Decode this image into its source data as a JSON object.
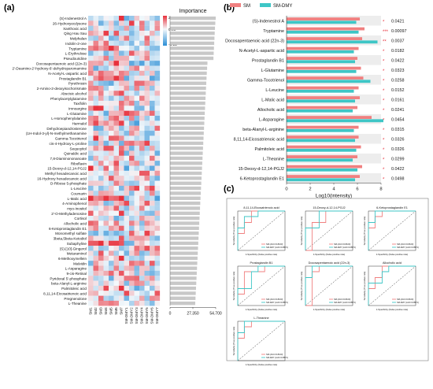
{
  "panel_labels": {
    "a": "(a)",
    "b": "(b)",
    "c": "(c)"
  },
  "colors": {
    "hm_low": "#2b8fd6",
    "hm_mid": "#f4f8fb",
    "hm_high": "#e8303b",
    "sm": "#f08080",
    "sm_dmy": "#3ec6c6",
    "importance_bar": "#c8c8c8"
  },
  "chart_data": [
    {
      "type": "heatmap",
      "panel": "a",
      "rows": [
        "(S)-Indenestrol A",
        "26-Hydroxyecdysone",
        "Xanthoxic acid",
        "Qing Hau Sau",
        "Melphalan",
        "Indolin-2-one",
        "Tryptamine",
        "L-Erythrulose",
        "Pseudouridine",
        "Docosapentaenoic acid (22n-3)",
        "2'-Deamino-2'-hydroxy-6'-dehydroparomamine",
        "N-Acetyl-L-aspartic acid",
        "Prostaglandin B1",
        "Pyrethrosin",
        "2-Amino-2-deoxyisochorismate",
        "Abscisic alcohol",
        "Phenylacetylglutamine",
        "Taxifolin",
        "Imnoargine",
        "L-Glutamine",
        "L-Homophenylalanine",
        "Harmalol",
        "Dehydroepiandrosterone",
        "(1H-Indol-3-yl)-N-methylmethanamine",
        "Gamma-Tocotrienol",
        "cis-4-Hydroxy-L-proline",
        "Sequoyitol",
        "Quinaldic acid",
        "7,8-Diaminononanoate",
        "Riboflavin",
        "15-Deoxy-d-12,14-PGJ2",
        "Methyl hexadecanoic acid",
        "16-Hydroxy hexadecanoic acid",
        "D-Ribose 5-phosphate",
        "L-Leucine",
        "Coumarin",
        "L-Malic acid",
        "4-Aminophenol",
        "myo-Inositol",
        "2'-O-Methyladenosine",
        "Cortisol",
        "Allocholic acid",
        "6-Ketoprostaglandin E1",
        "Monomethyl sulfate",
        "3beta,5beta-Ketodiol",
        "Subaphyline",
        "(S)-[10]-Gingerol",
        "Metaraminol",
        "6-Methoxymellein",
        "Malvidin",
        "L-Asparagine",
        "9-cis-Retinal",
        "Pyridoxal 5'-phosphate",
        "beta-Alanyl-L-arginine",
        "Palmitoleic acid",
        "8,11,14-Eicosatrienoic acid",
        "Pregnenolone",
        "L-Theanine"
      ],
      "columns": [
        "SM1",
        "SM2",
        "SM3",
        "SM4",
        "SM5",
        "SM6",
        "SM7",
        "SM-DMY1",
        "SM-DMY2",
        "SM-DMY3",
        "SM-DMY4",
        "SM-DMY5",
        "SM-DMY6",
        "SM-DMY7"
      ],
      "scale": {
        "min": -3.22,
        "mid": 0.0,
        "max": 2.51
      },
      "scale_labels": [
        "2.51",
        "0.00",
        "-3.22"
      ]
    },
    {
      "type": "bar",
      "panel": "a",
      "orientation": "horizontal",
      "title": "Importance",
      "xlim": [
        0,
        54.7
      ],
      "ticks": [
        "0",
        "27.350",
        "54.700"
      ],
      "values": [
        54.7,
        54.2,
        53.8,
        53.5,
        53.2,
        52.9,
        52.6,
        52.3,
        52.0,
        44.8,
        44.4,
        44.0,
        43.7,
        43.4,
        43.1,
        42.8,
        42.5,
        42.2,
        41.9,
        41.6,
        41.3,
        41.0,
        40.7,
        40.4,
        40.1,
        39.8,
        39.5,
        39.2,
        38.9,
        38.6,
        38.3,
        38.0,
        37.7,
        37.4,
        37.1,
        36.8,
        36.5,
        36.2,
        35.9,
        35.6,
        35.3,
        35.0,
        34.7,
        34.4,
        34.1,
        33.8,
        33.5,
        33.2,
        32.9,
        32.6,
        32.3,
        32.0,
        31.7,
        31.4,
        31.1,
        30.8,
        30.5,
        30.2
      ]
    },
    {
      "type": "bar",
      "panel": "b",
      "orientation": "horizontal",
      "xlabel": "Log10(intensity)",
      "xlim": [
        0,
        8
      ],
      "ticks": [
        "0",
        "2",
        "4",
        "6",
        "8"
      ],
      "categories": [
        "(S)-Indenestrol A",
        "Tryptamine",
        "Docosapentaenoic acid (22n-3)",
        "N-Acetyl-L-aspartic acid",
        "Prostaglandin B1",
        "L-Glutamine",
        "Gamma-Tocotrienol",
        "L-Leucine",
        "L-Malic acid",
        "Allocholic acid",
        "L-Asparagine",
        "beta-Alanyl-L-arginine",
        "8,11,14-Eicosatrienoic acid",
        "Palmitoleic acid",
        "L-Theanine",
        "15-Deoxy-d-12,14-PGJ2",
        "6-Ketoprostaglandin E1"
      ],
      "series": [
        {
          "name": "SM",
          "values": [
            6.2,
            6.6,
            6.4,
            6.1,
            6.0,
            6.3,
            6.5,
            6.1,
            6.2,
            6.0,
            7.2,
            6.1,
            6.1,
            6.3,
            6.0,
            6.4,
            6.2
          ]
        },
        {
          "name": "SM-DMY",
          "values": [
            5.9,
            6.1,
            7.7,
            5.7,
            5.8,
            5.9,
            7.1,
            5.7,
            5.8,
            5.6,
            8.2,
            5.7,
            5.8,
            5.9,
            5.6,
            6.0,
            5.8
          ]
        }
      ],
      "stars": [
        "*",
        "***",
        "**",
        "*",
        "*",
        "*",
        "*",
        "*",
        "*",
        "*",
        "*",
        "*",
        "*",
        "*",
        "*",
        "*",
        "*"
      ],
      "pvalues": [
        "0.0421",
        "0.00097",
        "0.0037",
        "0.0182",
        "0.0422",
        "0.0323",
        "0.0258",
        "0.0152",
        "0.0161",
        "0.0241",
        "0.0454",
        "0.0315",
        "0.0326",
        "0.0326",
        "0.0299",
        "0.0422",
        "0.0498"
      ],
      "legend": "top-right"
    },
    {
      "type": "line",
      "panel": "c",
      "titles": [
        "8,11,14-Eicosatrienoic acid",
        "15-Deoxy-d-12,14-PGJ2",
        "6-Ketoprostaglandin E1",
        "Prostaglandin B1",
        "Docosapentaenoic acid (22n-3)",
        "Allocholic acid",
        "L-Theanine"
      ],
      "xlabel": "1-Specificity (False positive rate)",
      "ylabel": "Sensitivity (True positive rate)",
      "series_names": [
        "SM (AUC=0.8163)",
        "SM-DMY (AUC=0.8571)"
      ],
      "curves": [
        {
          "sm": [
            [
              0,
              0
            ],
            [
              0,
              0.43
            ],
            [
              0.14,
              0.43
            ],
            [
              0.14,
              0.71
            ],
            [
              0.29,
              0.71
            ],
            [
              0.29,
              1
            ],
            [
              1,
              1
            ]
          ],
          "dmy": [
            [
              0,
              0
            ],
            [
              0,
              0.57
            ],
            [
              0.14,
              0.57
            ],
            [
              0.14,
              0.86
            ],
            [
              0.43,
              0.86
            ],
            [
              0.43,
              1
            ],
            [
              1,
              1
            ]
          ]
        },
        {
          "sm": [
            [
              0,
              0
            ],
            [
              0.14,
              0
            ],
            [
              0.14,
              0.71
            ],
            [
              0.43,
              0.71
            ],
            [
              0.43,
              1
            ],
            [
              1,
              1
            ]
          ],
          "dmy": [
            [
              0,
              0
            ],
            [
              0,
              0.57
            ],
            [
              0.29,
              0.57
            ],
            [
              0.29,
              1
            ],
            [
              1,
              1
            ]
          ]
        },
        {
          "sm": [
            [
              0,
              0
            ],
            [
              0,
              0.57
            ],
            [
              0.14,
              0.57
            ],
            [
              0.14,
              0.86
            ],
            [
              0.29,
              0.86
            ],
            [
              0.29,
              1
            ],
            [
              1,
              1
            ]
          ],
          "dmy": [
            [
              0,
              0
            ],
            [
              0,
              0.71
            ],
            [
              0.14,
              0.71
            ],
            [
              0.14,
              1
            ],
            [
              1,
              1
            ]
          ]
        },
        {
          "sm": [
            [
              0,
              0
            ],
            [
              0,
              0.29
            ],
            [
              0.14,
              0.29
            ],
            [
              0.14,
              0.86
            ],
            [
              0.57,
              0.86
            ],
            [
              0.57,
              1
            ],
            [
              1,
              1
            ]
          ],
          "dmy": [
            [
              0,
              0
            ],
            [
              0,
              0.43
            ],
            [
              0.29,
              0.43
            ],
            [
              0.29,
              0.86
            ],
            [
              0.43,
              0.86
            ],
            [
              0.43,
              1
            ],
            [
              1,
              1
            ]
          ]
        },
        {
          "sm": [
            [
              0,
              0
            ],
            [
              0.14,
              0
            ],
            [
              0.14,
              0.86
            ],
            [
              0.29,
              0.86
            ],
            [
              0.29,
              1
            ],
            [
              1,
              1
            ]
          ],
          "dmy": [
            [
              0,
              0
            ],
            [
              0,
              0.71
            ],
            [
              0.14,
              0.71
            ],
            [
              0.14,
              1
            ],
            [
              1,
              1
            ]
          ]
        },
        {
          "sm": [
            [
              0,
              0
            ],
            [
              0,
              0.43
            ],
            [
              0.14,
              0.43
            ],
            [
              0.14,
              0.71
            ],
            [
              0.29,
              0.71
            ],
            [
              0.29,
              1
            ],
            [
              1,
              1
            ]
          ],
          "dmy": [
            [
              0,
              0
            ],
            [
              0,
              0.57
            ],
            [
              0.29,
              0.57
            ],
            [
              0.29,
              0.86
            ],
            [
              0.43,
              0.86
            ],
            [
              0.43,
              1
            ],
            [
              1,
              1
            ]
          ]
        },
        {
          "sm": [
            [
              0,
              0
            ],
            [
              0,
              0.57
            ],
            [
              0.14,
              0.57
            ],
            [
              0.14,
              0.86
            ],
            [
              0.29,
              0.86
            ],
            [
              0.29,
              1
            ],
            [
              1,
              1
            ]
          ],
          "dmy": [
            [
              0,
              0
            ],
            [
              0,
              0.71
            ],
            [
              0.14,
              0.71
            ],
            [
              0.14,
              1
            ],
            [
              1,
              1
            ]
          ]
        }
      ]
    }
  ]
}
